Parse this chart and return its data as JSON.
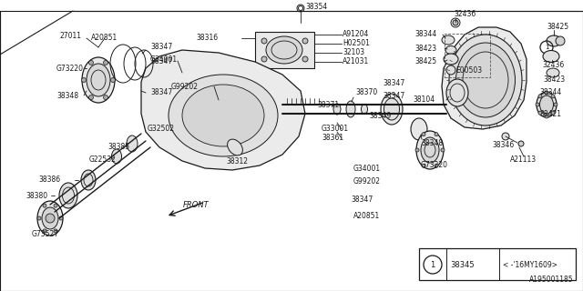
{
  "bg_color": "#ffffff",
  "line_color": "#1a1a1a",
  "doc_num": "A195001185",
  "legend_part": "38345",
  "legend_range": "< -'16MY1609>",
  "figw": 6.4,
  "figh": 3.2,
  "dpi": 100
}
